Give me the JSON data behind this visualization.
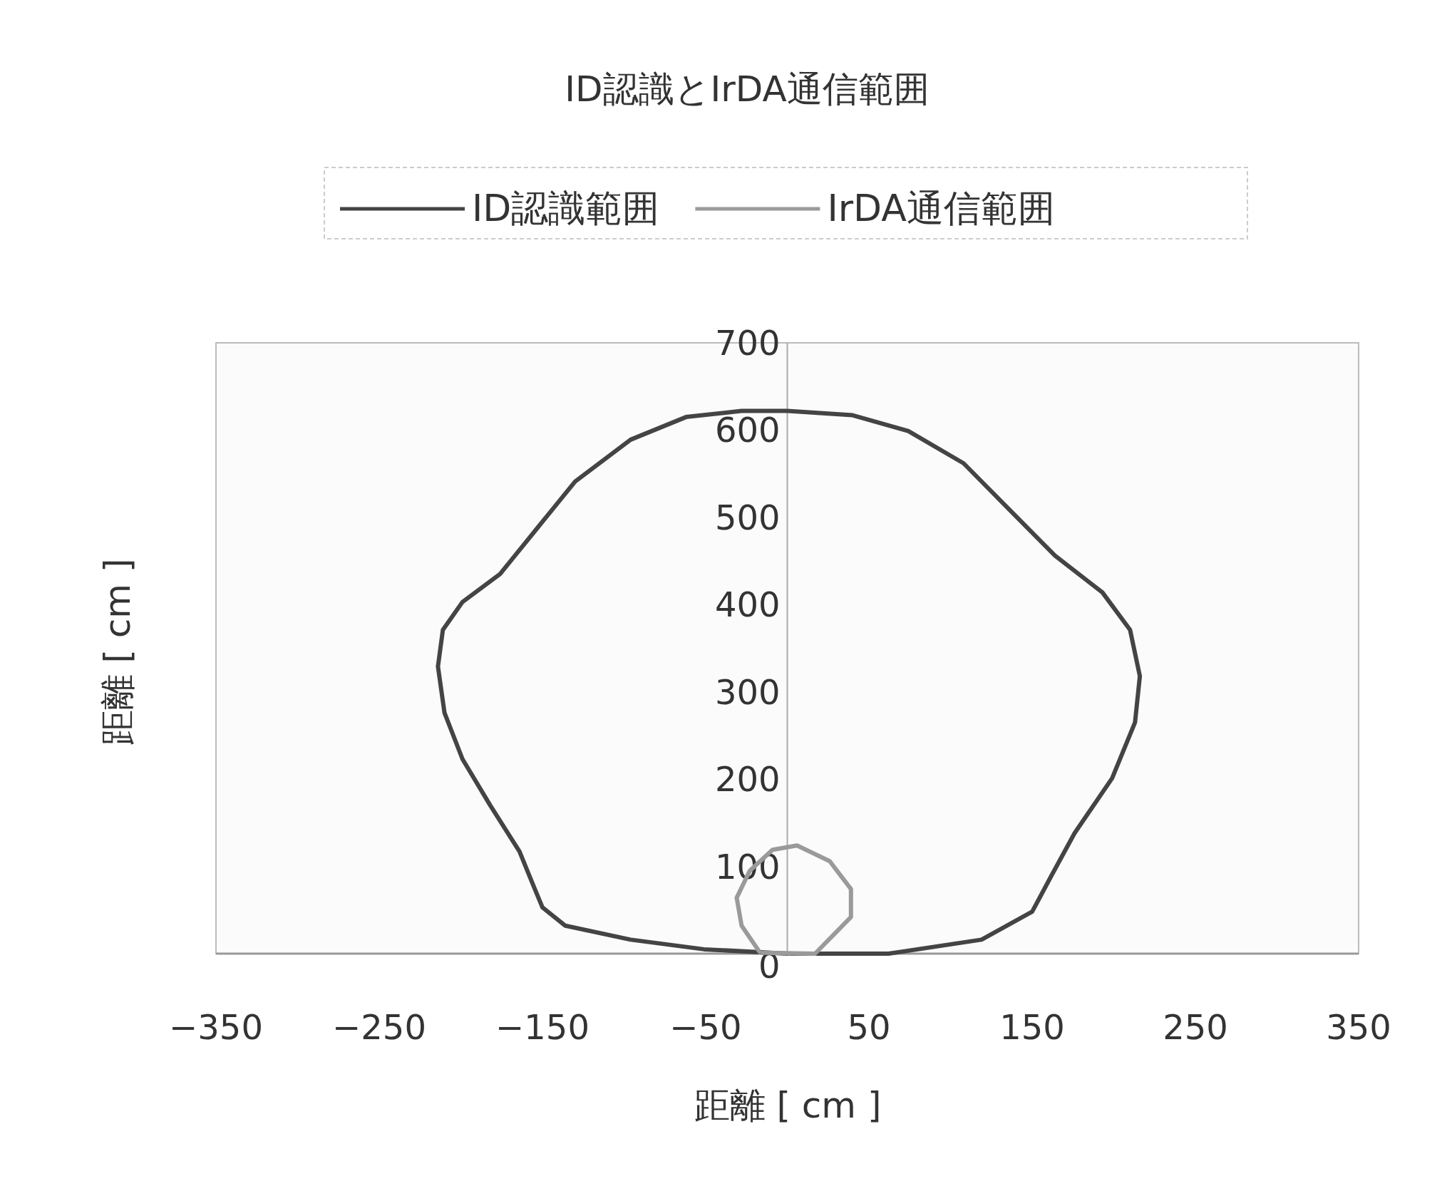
{
  "chart_data": {
    "type": "line",
    "title": "ID認識とIrDA通信範囲",
    "xlabel": "距離 [ cm ]",
    "ylabel": "距離 [ cm ]",
    "legend": "top",
    "marker": "none",
    "line_style": "solid",
    "xlim": [
      -350,
      350
    ],
    "xticks": [
      -350,
      -250,
      -150,
      -50,
      50,
      150,
      250,
      350
    ],
    "ylim": [
      0,
      700
    ],
    "yticks": [
      0,
      100,
      200,
      300,
      400,
      500,
      600,
      700
    ],
    "series": [
      {
        "name": "ID認識範囲",
        "color": "#444444",
        "x": [
          0,
          -51,
          -96,
          -136,
          -150,
          -156,
          -164,
          -182,
          -199,
          -210,
          -214,
          -211,
          -199,
          -176,
          -153,
          -130,
          -96,
          -62,
          -28,
          0,
          40,
          74,
          108,
          136,
          164,
          193,
          210,
          216,
          213,
          199,
          176,
          162,
          150,
          119,
          62,
          2
        ],
        "values": [
          0,
          5,
          16,
          32,
          53,
          80,
          117,
          170,
          223,
          276,
          329,
          371,
          403,
          435,
          488,
          541,
          589,
          615,
          622,
          622,
          617,
          599,
          562,
          509,
          456,
          414,
          371,
          318,
          265,
          201,
          138,
          90,
          48,
          16,
          0,
          0
        ]
      },
      {
        "name": "IrDA通信範囲",
        "color": "#9a9a9a",
        "x": [
          -17,
          -28,
          -31,
          -23,
          -9,
          6,
          26,
          39,
          39,
          28,
          17,
          -15
        ],
        "values": [
          2,
          32,
          64,
          95,
          119,
          124,
          106,
          74,
          42,
          21,
          0,
          1
        ]
      }
    ]
  }
}
